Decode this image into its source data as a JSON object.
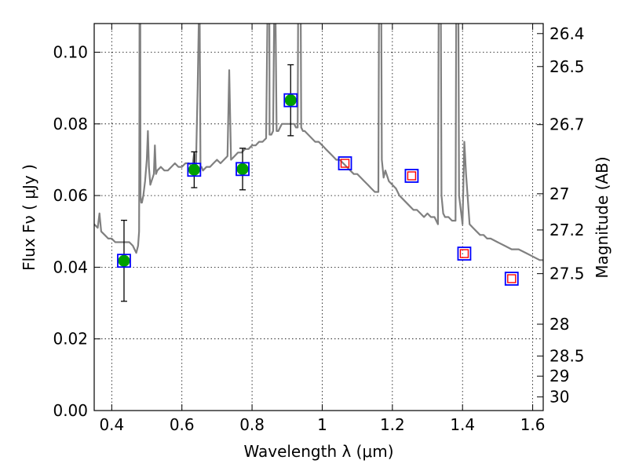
{
  "chart_data": {
    "type": "scatter",
    "xlabel": "Wavelength  λ (μm)",
    "ylabel": "Flux  Fν  ( μJy )",
    "y2label": "Magnitude (AB)",
    "xlim": [
      0.35,
      1.63
    ],
    "ylim": [
      0.0,
      0.108
    ],
    "grid": true,
    "x_ticks": [
      {
        "value": 0.4,
        "label": "0.4"
      },
      {
        "value": 0.6,
        "label": "0.6"
      },
      {
        "value": 0.8,
        "label": "0.8"
      },
      {
        "value": 1.0,
        "label": "1"
      },
      {
        "value": 1.2,
        "label": "1.2"
      },
      {
        "value": 1.4,
        "label": "1.4"
      },
      {
        "value": 1.6,
        "label": "1.6"
      }
    ],
    "y_ticks": [
      {
        "value": 0.0,
        "label": "0.00"
      },
      {
        "value": 0.02,
        "label": "0.02"
      },
      {
        "value": 0.04,
        "label": "0.04"
      },
      {
        "value": 0.06,
        "label": "0.06"
      },
      {
        "value": 0.08,
        "label": "0.08"
      },
      {
        "value": 0.1,
        "label": "0.10"
      }
    ],
    "y2_ticks": [
      {
        "label": "26.4",
        "flux": 0.1052
      },
      {
        "label": "26.5",
        "flux": 0.096
      },
      {
        "label": "26.7",
        "flux": 0.0798
      },
      {
        "label": "27",
        "flux": 0.0605
      },
      {
        "label": "27.2",
        "flux": 0.0504
      },
      {
        "label": "27.5",
        "flux": 0.0382
      },
      {
        "label": "28",
        "flux": 0.0241
      },
      {
        "label": "28.5",
        "flux": 0.0152
      },
      {
        "label": "29",
        "flux": 0.0096
      },
      {
        "label": "30",
        "flux": 0.0038
      }
    ],
    "series": [
      {
        "kind": "line",
        "color": "#808080",
        "x": [
          0.35,
          0.36,
          0.365,
          0.37,
          0.38,
          0.39,
          0.4,
          0.41,
          0.42,
          0.43,
          0.44,
          0.45,
          0.46,
          0.465,
          0.47,
          0.475,
          0.478,
          0.479,
          0.48,
          0.482,
          0.484,
          0.486,
          0.49,
          0.495,
          0.5,
          0.503,
          0.506,
          0.51,
          0.52,
          0.523,
          0.526,
          0.53,
          0.54,
          0.55,
          0.56,
          0.57,
          0.58,
          0.59,
          0.6,
          0.61,
          0.62,
          0.63,
          0.635,
          0.64,
          0.645,
          0.65,
          0.653,
          0.656,
          0.66,
          0.67,
          0.68,
          0.69,
          0.7,
          0.71,
          0.72,
          0.73,
          0.735,
          0.74,
          0.75,
          0.76,
          0.77,
          0.78,
          0.79,
          0.8,
          0.81,
          0.82,
          0.83,
          0.84,
          0.845,
          0.848,
          0.85,
          0.855,
          0.86,
          0.865,
          0.87,
          0.875,
          0.88,
          0.885,
          0.89,
          0.9,
          0.91,
          0.92,
          0.925,
          0.93,
          0.935,
          0.94,
          0.945,
          0.95,
          0.96,
          0.97,
          0.98,
          0.99,
          1.0,
          1.01,
          1.02,
          1.03,
          1.04,
          1.05,
          1.06,
          1.07,
          1.08,
          1.09,
          1.1,
          1.11,
          1.12,
          1.13,
          1.14,
          1.15,
          1.16,
          1.165,
          1.17,
          1.175,
          1.18,
          1.19,
          1.2,
          1.21,
          1.22,
          1.23,
          1.24,
          1.25,
          1.26,
          1.27,
          1.28,
          1.29,
          1.3,
          1.31,
          1.32,
          1.33,
          1.335,
          1.34,
          1.345,
          1.35,
          1.36,
          1.37,
          1.38,
          1.385,
          1.39,
          1.4,
          1.405,
          1.41,
          1.42,
          1.43,
          1.44,
          1.45,
          1.46,
          1.47,
          1.48,
          1.5,
          1.52,
          1.54,
          1.56,
          1.58,
          1.6,
          1.62,
          1.63
        ],
        "y": [
          0.052,
          0.051,
          0.055,
          0.05,
          0.049,
          0.048,
          0.048,
          0.047,
          0.047,
          0.047,
          0.047,
          0.047,
          0.046,
          0.045,
          0.044,
          0.046,
          0.05,
          0.085,
          0.2,
          0.06,
          0.058,
          0.058,
          0.06,
          0.064,
          0.07,
          0.078,
          0.068,
          0.063,
          0.066,
          0.074,
          0.066,
          0.067,
          0.068,
          0.067,
          0.067,
          0.068,
          0.069,
          0.068,
          0.068,
          0.069,
          0.069,
          0.068,
          0.072,
          0.068,
          0.09,
          0.12,
          0.068,
          0.068,
          0.067,
          0.068,
          0.068,
          0.069,
          0.07,
          0.069,
          0.07,
          0.071,
          0.095,
          0.07,
          0.071,
          0.072,
          0.072,
          0.073,
          0.073,
          0.074,
          0.074,
          0.075,
          0.075,
          0.076,
          0.12,
          0.2,
          0.077,
          0.077,
          0.078,
          0.13,
          0.078,
          0.078,
          0.079,
          0.08,
          0.08,
          0.08,
          0.08,
          0.08,
          0.079,
          0.079,
          0.2,
          0.079,
          0.078,
          0.078,
          0.077,
          0.076,
          0.075,
          0.075,
          0.074,
          0.073,
          0.072,
          0.071,
          0.07,
          0.07,
          0.069,
          0.068,
          0.067,
          0.066,
          0.066,
          0.065,
          0.064,
          0.063,
          0.062,
          0.061,
          0.061,
          0.2,
          0.07,
          0.065,
          0.067,
          0.064,
          0.063,
          0.062,
          0.06,
          0.059,
          0.058,
          0.057,
          0.056,
          0.056,
          0.055,
          0.054,
          0.055,
          0.054,
          0.054,
          0.052,
          0.2,
          0.06,
          0.055,
          0.054,
          0.054,
          0.053,
          0.053,
          0.2,
          0.06,
          0.052,
          0.075,
          0.066,
          0.052,
          0.051,
          0.05,
          0.049,
          0.049,
          0.048,
          0.048,
          0.047,
          0.046,
          0.045,
          0.045,
          0.044,
          0.043,
          0.042,
          0.042
        ]
      },
      {
        "kind": "markers",
        "marker": "circle",
        "color": "#00a000",
        "x": [
          0.435,
          0.635,
          0.773,
          0.91
        ],
        "y": [
          0.0418,
          0.0672,
          0.0674,
          0.0866
        ],
        "yerr": [
          0.0113,
          0.005,
          0.0058,
          0.0099
        ]
      },
      {
        "kind": "markers",
        "marker": "open-square",
        "color": "#0000ff",
        "x": [
          0.435,
          0.635,
          0.773,
          0.91,
          1.065,
          1.255,
          1.405,
          1.54
        ],
        "y": [
          0.0418,
          0.0672,
          0.0674,
          0.0866,
          0.069,
          0.0655,
          0.0438,
          0.0368
        ]
      },
      {
        "kind": "markers",
        "marker": "small-open-square",
        "color": "#ff0000",
        "x": [
          1.065,
          1.255,
          1.405,
          1.54
        ],
        "y": [
          0.069,
          0.0655,
          0.0438,
          0.0368
        ]
      }
    ]
  }
}
